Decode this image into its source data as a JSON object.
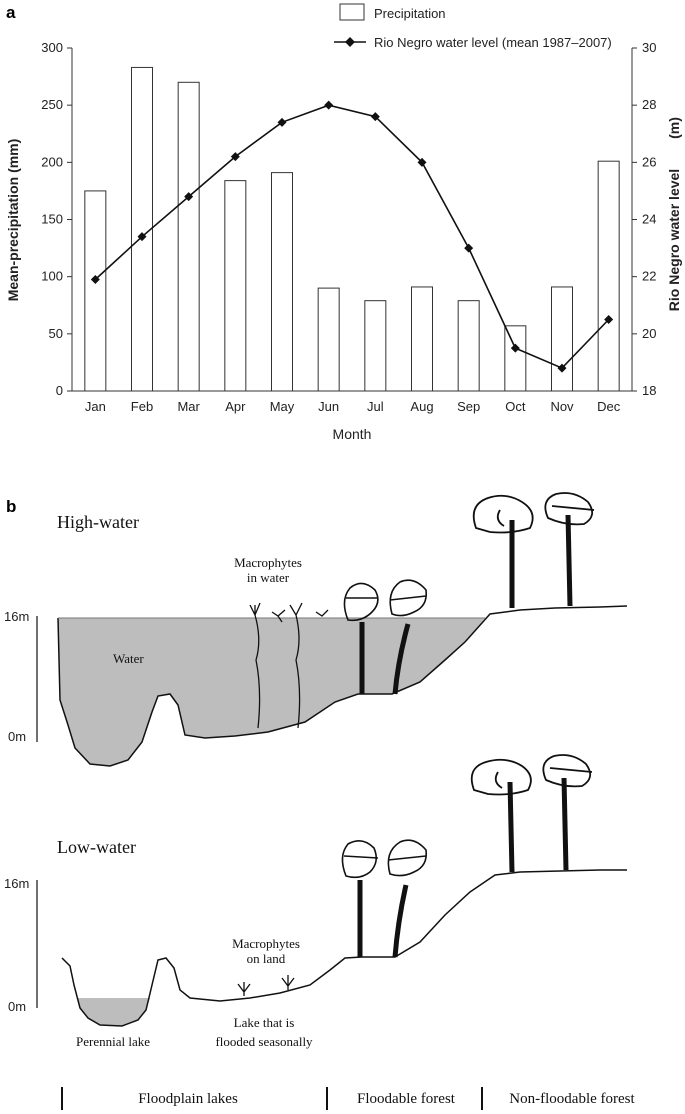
{
  "panel_a": {
    "label": "a",
    "chart_data": {
      "type": "bar+line",
      "categories": [
        "Jan",
        "Feb",
        "Mar",
        "Apr",
        "May",
        "Jun",
        "Jul",
        "Aug",
        "Sep",
        "Oct",
        "Nov",
        "Dec"
      ],
      "series": [
        {
          "name": "Precipitation",
          "type": "bar",
          "axis": "left",
          "values": [
            175,
            283,
            270,
            184,
            191,
            90,
            79,
            91,
            79,
            57,
            91,
            201
          ]
        },
        {
          "name": "Rio Negro water level (mean 1987–2007)",
          "type": "line",
          "axis": "right",
          "values": [
            21.9,
            23.4,
            24.8,
            26.2,
            27.4,
            28.0,
            27.6,
            26.0,
            23.0,
            19.5,
            18.8,
            20.5
          ]
        }
      ],
      "xlabel": "Month",
      "ylabel_left": "Mean-precipitation (mm)",
      "ylabel_right": "Rio Negro water level",
      "ylabel_right_unit": "(m)",
      "ylim_left": [
        0,
        300
      ],
      "ylim_right": [
        18,
        30
      ],
      "yticks_left": [
        "0",
        "50",
        "100",
        "150",
        "200",
        "250",
        "300"
      ],
      "yticks_right": [
        "18",
        "20",
        "22",
        "24",
        "26",
        "28",
        "30"
      ],
      "grid": false,
      "legend_position": "top-right"
    }
  },
  "panel_b": {
    "label": "b",
    "high_water": {
      "title": "High-water",
      "scale_top": "16m",
      "scale_bottom": "0m",
      "water_label": "Water",
      "macrophytes_line1": "Macrophytes",
      "macrophytes_line2": "in water"
    },
    "low_water": {
      "title": "Low-water",
      "scale_top": "16m",
      "scale_bottom": "0m",
      "macrophytes_line1": "Macrophytes",
      "macrophytes_line2": "on land",
      "perennial_lake": "Perennial lake",
      "seasonal_lake_line1": "Lake that is",
      "seasonal_lake_line2": "flooded seasonally"
    },
    "zones": [
      "Floodplain lakes",
      "Floodable forest",
      "Non-floodable forest"
    ]
  }
}
